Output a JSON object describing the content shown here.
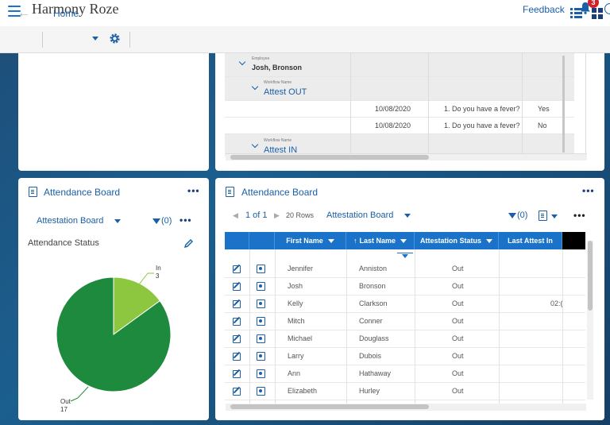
{
  "app": {
    "logo_text": "Harmony Roze",
    "logo_subtext": "",
    "feedback_label": "Feedback",
    "notification_count": "3"
  },
  "toolbar": {
    "breadcrumb": "Home"
  },
  "top_grid": {
    "employee_caption": "Employee",
    "employee_name": "Josh, Bronson",
    "workflow_caption": "Workflow Name",
    "groups": [
      {
        "workflow": "Attest OUT",
        "rows": [
          {
            "date": "10/08/2020",
            "question": "1. Do you have a fever?",
            "answer": "Yes"
          },
          {
            "date": "10/08/2020",
            "question": "1. Do you have a fever?",
            "answer": "No"
          }
        ]
      },
      {
        "workflow": "Attest IN",
        "rows": []
      }
    ]
  },
  "left_panel": {
    "title": "Attendance Board",
    "view_label": "Attestation Board",
    "filter_count": "(0)",
    "subtitle": "Attendance Status"
  },
  "chart_data": {
    "type": "pie",
    "title": "Attendance Status",
    "series": [
      {
        "name": "In",
        "value": 3,
        "color": "#8dc63f"
      },
      {
        "name": "Out",
        "value": 17,
        "color": "#1e8a3e"
      }
    ],
    "labels": {
      "in_name": "In",
      "in_value": "3",
      "out_name": "Out",
      "out_value": "17"
    }
  },
  "right_panel": {
    "title": "Attendance Board",
    "pager": "1 of 1",
    "rows_label": "20 Rows",
    "view_label": "Attestation Board",
    "filter_count": "(0)",
    "columns": {
      "first": "First Name",
      "last": "Last Name",
      "status": "Attestation Status",
      "last_attest": "Last Attest In"
    },
    "rows": [
      {
        "first": "Jennifer",
        "last": "Anniston",
        "status": "Out",
        "time": ""
      },
      {
        "first": "Josh",
        "last": "Bronson",
        "status": "Out",
        "time": ""
      },
      {
        "first": "Kelly",
        "last": "Clarkson",
        "status": "Out",
        "time": "02:("
      },
      {
        "first": "Mitch",
        "last": "Conner",
        "status": "Out",
        "time": ""
      },
      {
        "first": "Michael",
        "last": "Douglass",
        "status": "Out",
        "time": ""
      },
      {
        "first": "Larry",
        "last": "Dubois",
        "status": "Out",
        "time": ""
      },
      {
        "first": "Ann",
        "last": "Hathaway",
        "status": "Out",
        "time": ""
      },
      {
        "first": "Elizabeth",
        "last": "Hurley",
        "status": "Out",
        "time": ""
      }
    ]
  },
  "colors": {
    "accent": "#1a73c8",
    "link": "#1a5fa8",
    "badge": "#d32027"
  }
}
